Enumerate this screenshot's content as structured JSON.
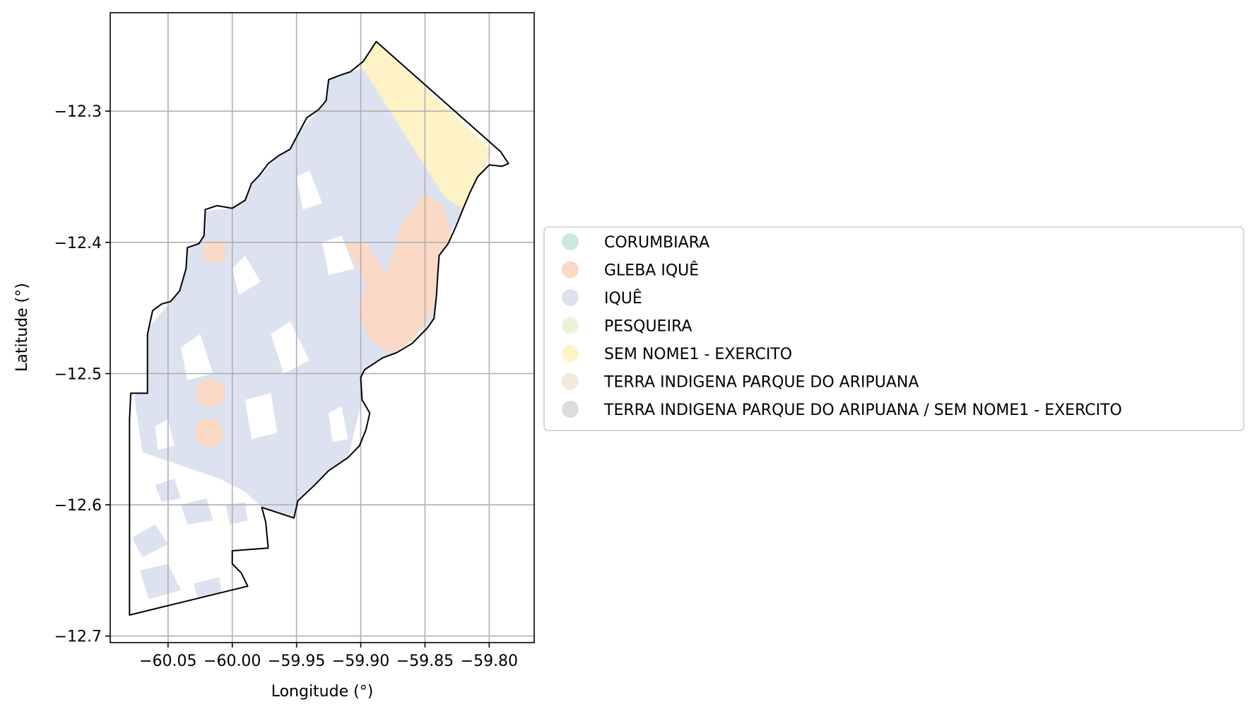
{
  "chart_data": {
    "type": "map",
    "xlabel": "Longitude (°)",
    "ylabel": "Latitude (°)",
    "xlim": [
      -60.095,
      -59.765
    ],
    "ylim": [
      -12.705,
      -12.225
    ],
    "x_ticks": [
      {
        "value": -60.05,
        "label": "−60.05"
      },
      {
        "value": -60.0,
        "label": "−60.00"
      },
      {
        "value": -59.95,
        "label": "−59.95"
      },
      {
        "value": -59.9,
        "label": "−59.90"
      },
      {
        "value": -59.85,
        "label": "−59.85"
      },
      {
        "value": -59.8,
        "label": "−59.80"
      }
    ],
    "y_ticks": [
      {
        "value": -12.3,
        "label": "−12.3"
      },
      {
        "value": -12.4,
        "label": "−12.4"
      },
      {
        "value": -12.5,
        "label": "−12.5"
      },
      {
        "value": -12.6,
        "label": "−12.6"
      },
      {
        "value": -12.7,
        "label": "−12.7"
      }
    ],
    "grid": true,
    "legend": {
      "placement": "center-right-outside",
      "entries": [
        {
          "label": "CORUMBIARA",
          "color": "#cde9dc"
        },
        {
          "label": "GLEBA IQUÊ",
          "color": "#fad9c6"
        },
        {
          "label": "IQUÊ",
          "color": "#dde2f0"
        },
        {
          "label": "PESQUEIRA",
          "color": "#e9f5d9"
        },
        {
          "label": "SEM NOME1 - EXERCITO",
          "color": "#fdf3c6"
        },
        {
          "label": "TERRA INDIGENA PARQUE DO ARIPUANA",
          "color": "#f3e8d9"
        },
        {
          "label": "TERRA INDIGENA PARQUE DO ARIPUANA / SEM NOME1 - EXERCITO",
          "color": "#dcdcdc"
        }
      ]
    },
    "boundary": [
      [
        -60.08,
        -12.684
      ],
      [
        -60.08,
        -12.535
      ],
      [
        -60.079,
        -12.515
      ],
      [
        -60.066,
        -12.515
      ],
      [
        -60.066,
        -12.47
      ],
      [
        -60.062,
        -12.452
      ],
      [
        -60.055,
        -12.447
      ],
      [
        -60.048,
        -12.445
      ],
      [
        -60.041,
        -12.437
      ],
      [
        -60.036,
        -12.42
      ],
      [
        -60.035,
        -12.404
      ],
      [
        -60.026,
        -12.401
      ],
      [
        -60.022,
        -12.395
      ],
      [
        -60.021,
        -12.375
      ],
      [
        -60.012,
        -12.372
      ],
      [
        -60.0,
        -12.374
      ],
      [
        -59.99,
        -12.368
      ],
      [
        -59.985,
        -12.355
      ],
      [
        -59.979,
        -12.349
      ],
      [
        -59.972,
        -12.34
      ],
      [
        -59.964,
        -12.334
      ],
      [
        -59.955,
        -12.329
      ],
      [
        -59.948,
        -12.316
      ],
      [
        -59.942,
        -12.305
      ],
      [
        -59.933,
        -12.299
      ],
      [
        -59.927,
        -12.292
      ],
      [
        -59.925,
        -12.276
      ],
      [
        -59.917,
        -12.273
      ],
      [
        -59.908,
        -12.27
      ],
      [
        -59.898,
        -12.262
      ],
      [
        -59.888,
        -12.247
      ],
      [
        -59.791,
        -12.331
      ],
      [
        -59.785,
        -12.34
      ],
      [
        -59.79,
        -12.342
      ],
      [
        -59.8,
        -12.341
      ],
      [
        -59.809,
        -12.35
      ],
      [
        -59.815,
        -12.362
      ],
      [
        -59.821,
        -12.376
      ],
      [
        -59.826,
        -12.388
      ],
      [
        -59.832,
        -12.401
      ],
      [
        -59.839,
        -12.41
      ],
      [
        -59.84,
        -12.424
      ],
      [
        -59.841,
        -12.44
      ],
      [
        -59.843,
        -12.458
      ],
      [
        -59.848,
        -12.465
      ],
      [
        -59.86,
        -12.477
      ],
      [
        -59.872,
        -12.484
      ],
      [
        -59.883,
        -12.488
      ],
      [
        -59.897,
        -12.497
      ],
      [
        -59.9,
        -12.503
      ],
      [
        -59.899,
        -12.52
      ],
      [
        -59.893,
        -12.53
      ],
      [
        -59.896,
        -12.543
      ],
      [
        -59.901,
        -12.555
      ],
      [
        -59.91,
        -12.564
      ],
      [
        -59.925,
        -12.574
      ],
      [
        -59.936,
        -12.585
      ],
      [
        -59.949,
        -12.597
      ],
      [
        -59.952,
        -12.61
      ],
      [
        -59.977,
        -12.602
      ],
      [
        -59.974,
        -12.613
      ],
      [
        -59.972,
        -12.633
      ],
      [
        -60.0,
        -12.635
      ],
      [
        -60.0,
        -12.645
      ],
      [
        -59.993,
        -12.652
      ],
      [
        -59.988,
        -12.662
      ],
      [
        -60.08,
        -12.684
      ]
    ],
    "regions": [
      {
        "name": "IQUÊ",
        "polygons": [
          [
            [
              -60.076,
              -12.52
            ],
            [
              -60.066,
              -12.466
            ],
            [
              -60.041,
              -12.437
            ],
            [
              -60.036,
              -12.402
            ],
            [
              -60.021,
              -12.376
            ],
            [
              -60.0,
              -12.374
            ],
            [
              -59.985,
              -12.356
            ],
            [
              -59.964,
              -12.334
            ],
            [
              -59.948,
              -12.316
            ],
            [
              -59.933,
              -12.299
            ],
            [
              -59.925,
              -12.276
            ],
            [
              -59.908,
              -12.27
            ],
            [
              -59.88,
              -12.263
            ],
            [
              -59.84,
              -12.3
            ],
            [
              -59.81,
              -12.345
            ],
            [
              -59.821,
              -12.376
            ],
            [
              -59.839,
              -12.41
            ],
            [
              -59.843,
              -12.458
            ],
            [
              -59.872,
              -12.484
            ],
            [
              -59.9,
              -12.503
            ],
            [
              -59.899,
              -12.52
            ],
            [
              -59.91,
              -12.564
            ],
            [
              -59.936,
              -12.585
            ],
            [
              -59.952,
              -12.61
            ],
            [
              -59.977,
              -12.602
            ],
            [
              -59.99,
              -12.59
            ],
            [
              -60.01,
              -12.58
            ],
            [
              -60.04,
              -12.57
            ],
            [
              -60.07,
              -12.56
            ]
          ]
        ],
        "holes": [
          [
            [
              -60.0,
              -12.42
            ],
            [
              -59.99,
              -12.41
            ],
            [
              -59.978,
              -12.43
            ],
            [
              -59.995,
              -12.44
            ]
          ],
          [
            [
              -59.97,
              -12.47
            ],
            [
              -59.955,
              -12.46
            ],
            [
              -59.94,
              -12.49
            ],
            [
              -59.96,
              -12.5
            ]
          ],
          [
            [
              -60.04,
              -12.48
            ],
            [
              -60.025,
              -12.47
            ],
            [
              -60.015,
              -12.5
            ],
            [
              -60.035,
              -12.505
            ]
          ],
          [
            [
              -59.99,
              -12.52
            ],
            [
              -59.97,
              -12.515
            ],
            [
              -59.965,
              -12.545
            ],
            [
              -59.985,
              -12.55
            ]
          ],
          [
            [
              -59.93,
              -12.4
            ],
            [
              -59.915,
              -12.395
            ],
            [
              -59.905,
              -12.42
            ],
            [
              -59.925,
              -12.425
            ]
          ],
          [
            [
              -59.95,
              -12.35
            ],
            [
              -59.94,
              -12.345
            ],
            [
              -59.93,
              -12.37
            ],
            [
              -59.945,
              -12.375
            ]
          ],
          [
            [
              -60.06,
              -12.54
            ],
            [
              -60.05,
              -12.535
            ],
            [
              -60.045,
              -12.555
            ],
            [
              -60.058,
              -12.558
            ]
          ],
          [
            [
              -59.925,
              -12.53
            ],
            [
              -59.915,
              -12.525
            ],
            [
              -59.91,
              -12.55
            ],
            [
              -59.922,
              -12.552
            ]
          ]
        ]
      },
      {
        "name": "IQUÊ",
        "polygons": [
          [
            [
              -60.078,
              -12.625
            ],
            [
              -60.06,
              -12.615
            ],
            [
              -60.05,
              -12.63
            ],
            [
              -60.07,
              -12.64
            ]
          ],
          [
            [
              -60.072,
              -12.65
            ],
            [
              -60.05,
              -12.645
            ],
            [
              -60.04,
              -12.665
            ],
            [
              -60.065,
              -12.672
            ]
          ],
          [
            [
              -60.04,
              -12.6
            ],
            [
              -60.02,
              -12.595
            ],
            [
              -60.015,
              -12.612
            ],
            [
              -60.035,
              -12.615
            ]
          ],
          [
            [
              -60.005,
              -12.6
            ],
            [
              -59.99,
              -12.598
            ],
            [
              -59.988,
              -12.612
            ],
            [
              -60.002,
              -12.615
            ]
          ],
          [
            [
              -60.03,
              -12.66
            ],
            [
              -60.01,
              -12.655
            ],
            [
              -60.008,
              -12.672
            ],
            [
              -60.026,
              -12.676
            ]
          ],
          [
            [
              -60.06,
              -12.585
            ],
            [
              -60.045,
              -12.58
            ],
            [
              -60.04,
              -12.595
            ],
            [
              -60.055,
              -12.598
            ]
          ]
        ]
      },
      {
        "name": "SEM NOME1 - EXERCITO",
        "polygons": [
          [
            [
              -59.888,
              -12.247
            ],
            [
              -59.798,
              -12.33
            ],
            [
              -59.805,
              -12.345
            ],
            [
              -59.82,
              -12.375
            ],
            [
              -59.835,
              -12.365
            ],
            [
              -59.9,
              -12.265
            ]
          ]
        ]
      },
      {
        "name": "GLEBA IQUÊ",
        "polygons": [
          [
            [
              -59.913,
              -12.4
            ],
            [
              -59.896,
              -12.4
            ],
            [
              -59.88,
              -12.425
            ],
            [
              -59.868,
              -12.385
            ],
            [
              -59.85,
              -12.362
            ],
            [
              -59.836,
              -12.372
            ],
            [
              -59.829,
              -12.395
            ],
            [
              -59.84,
              -12.425
            ],
            [
              -59.845,
              -12.455
            ],
            [
              -59.86,
              -12.475
            ],
            [
              -59.875,
              -12.485
            ],
            [
              -59.892,
              -12.475
            ],
            [
              -59.902,
              -12.455
            ],
            [
              -59.896,
              -12.43
            ]
          ]
        ]
      }
    ],
    "circles": [
      {
        "name": "GLEBA IQUÊ",
        "lon": -60.014,
        "lat": -12.407,
        "r": 0.009
      },
      {
        "name": "GLEBA IQUÊ",
        "lon": -60.017,
        "lat": -12.515,
        "r": 0.011
      },
      {
        "name": "GLEBA IQUÊ",
        "lon": -60.018,
        "lat": -12.545,
        "r": 0.011
      }
    ]
  }
}
